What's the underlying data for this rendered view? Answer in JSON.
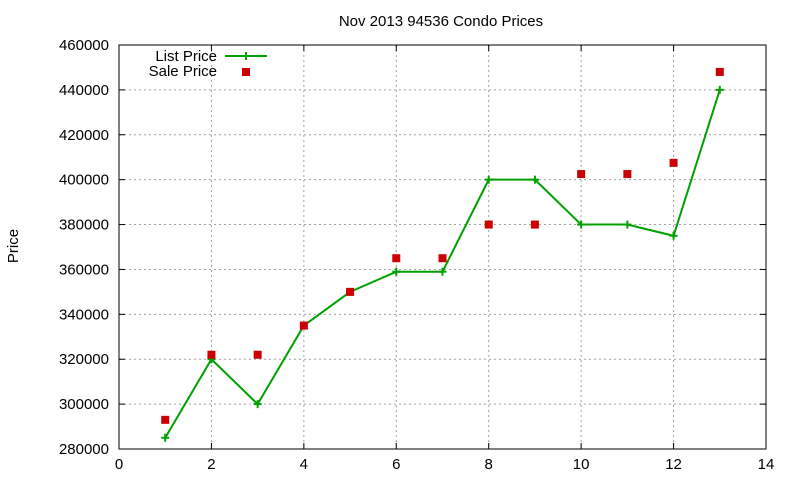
{
  "chart_data": {
    "type": "line",
    "title": "Nov 2013 94536 Condo Prices",
    "xlabel": "",
    "ylabel": "Price",
    "xlim": [
      0,
      14
    ],
    "ylim": [
      280000,
      460000
    ],
    "xticks": [
      "0",
      "2",
      "4",
      "6",
      "8",
      "10",
      "12",
      "14"
    ],
    "yticks": [
      "280000",
      "300000",
      "320000",
      "340000",
      "360000",
      "380000",
      "400000",
      "420000",
      "440000",
      "460000"
    ],
    "grid": true,
    "legend_position": "top-left",
    "series": [
      {
        "name": "List Price",
        "style": "line-with-plus-markers",
        "color": "#00a000",
        "points": [
          [
            1,
            285000
          ],
          [
            2,
            320000
          ],
          [
            3,
            300000
          ],
          [
            4,
            335000
          ],
          [
            5,
            350000
          ],
          [
            6,
            359000
          ],
          [
            7,
            359000
          ],
          [
            8,
            400000
          ],
          [
            9,
            400000
          ],
          [
            10,
            380000
          ],
          [
            11,
            380000
          ],
          [
            12,
            375000
          ],
          [
            13,
            440000
          ]
        ]
      },
      {
        "name": "Sale Price",
        "style": "square-points",
        "color": "#cc0000",
        "points": [
          [
            1,
            293000
          ],
          [
            2,
            322000
          ],
          [
            3,
            322000
          ],
          [
            4,
            335000
          ],
          [
            5,
            350000
          ],
          [
            6,
            365000
          ],
          [
            7,
            365000
          ],
          [
            8,
            380000
          ],
          [
            9,
            380000
          ],
          [
            10,
            402500
          ],
          [
            11,
            402500
          ],
          [
            12,
            407500
          ],
          [
            13,
            448000
          ]
        ]
      }
    ]
  }
}
